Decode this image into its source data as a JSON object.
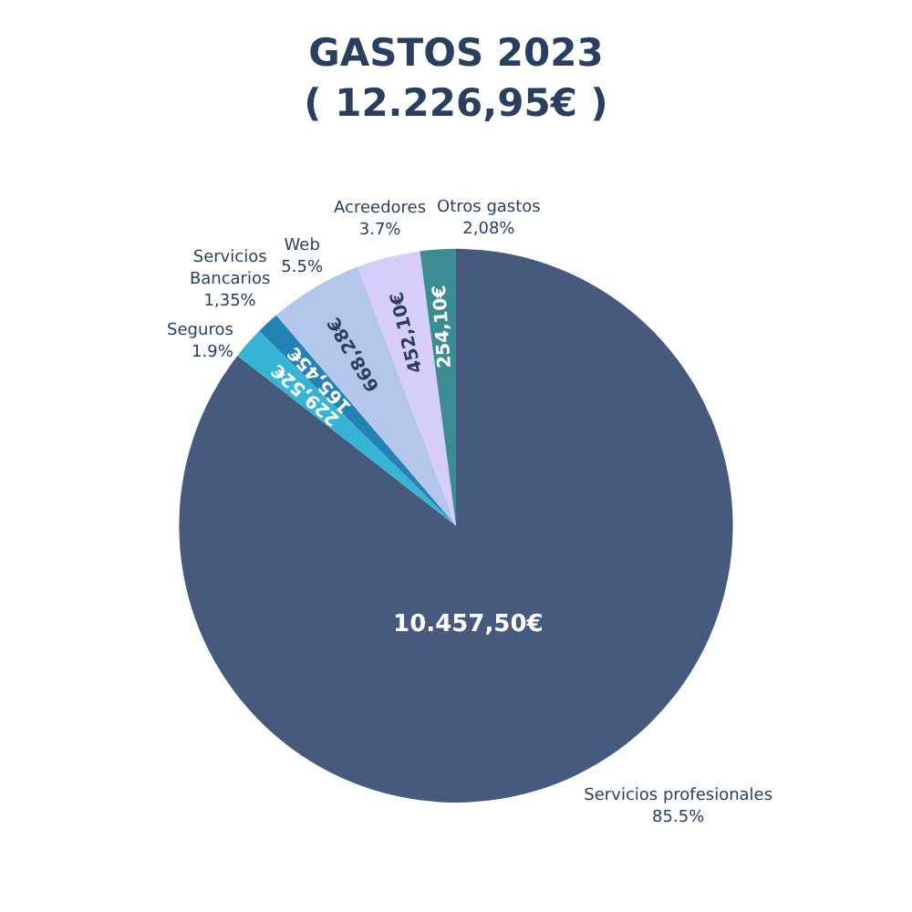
{
  "chart_data": {
    "type": "pie",
    "title": "GASTOS 2023",
    "subtitle": "( 12.226,95€ )",
    "categories": [
      "Servicios profesionales",
      "Seguros",
      "Servicios Bancarios",
      "Web",
      "Acreedores",
      "Otros gastos"
    ],
    "values": [
      10457.5,
      229.52,
      165.45,
      668.28,
      452.1,
      254.1
    ],
    "value_labels": [
      "10.457,50€",
      "229,52€",
      "165,45€",
      "668,28€",
      "452,10€",
      "254,10€"
    ],
    "annotations": [
      "85.5%",
      "1.9%",
      "1,35%",
      "5.5%",
      "3.7%",
      "2,08%"
    ],
    "colors": [
      "#465a7e",
      "#36b4d6",
      "#2283b4",
      "#b5c6ec",
      "#d6cdfa",
      "#3b8c93"
    ],
    "legend": false
  }
}
